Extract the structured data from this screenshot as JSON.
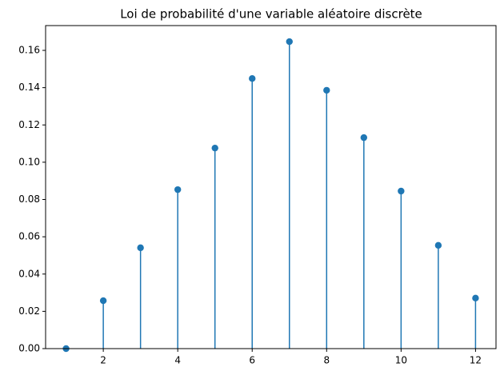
{
  "chart_data": {
    "type": "stem",
    "title": "Loi de probabilité d'une variable aléatoire discrète",
    "x": [
      1,
      2,
      3,
      4,
      5,
      6,
      7,
      8,
      9,
      10,
      11,
      12
    ],
    "values": [
      0.0,
      0.0257,
      0.0541,
      0.0853,
      0.1076,
      0.1449,
      0.1647,
      0.1386,
      0.1132,
      0.0845,
      0.0554,
      0.0271
    ],
    "color": "#1f77b4",
    "xlim": [
      0.45,
      12.55
    ],
    "xticks": [
      2,
      4,
      6,
      8,
      10,
      12
    ],
    "ylim": [
      0,
      0.1733
    ],
    "yticks": [
      {
        "value": 0,
        "label": "0.00"
      },
      {
        "value": 0.02,
        "label": "0.02"
      },
      {
        "value": 0.04,
        "label": "0.04"
      },
      {
        "value": 0.06,
        "label": "0.06"
      },
      {
        "value": 0.08,
        "label": "0.08"
      },
      {
        "value": 0.1,
        "label": "0.10"
      },
      {
        "value": 0.12,
        "label": "0.12"
      },
      {
        "value": 0.14,
        "label": "0.14"
      },
      {
        "value": 0.16,
        "label": "0.16"
      }
    ]
  }
}
